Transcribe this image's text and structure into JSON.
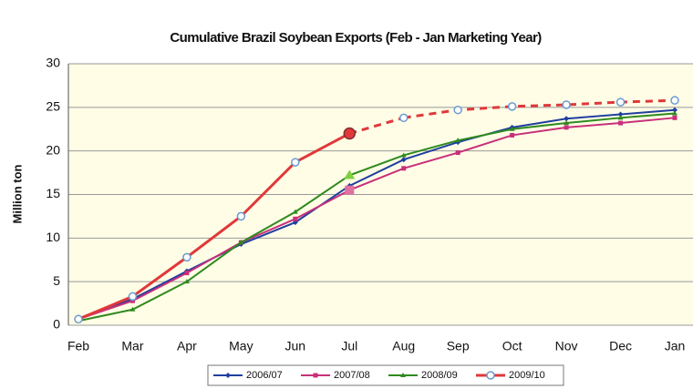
{
  "chart_data": {
    "type": "line",
    "title": "Cumulative Brazil Soybean Exports (Feb - Jan Marketing Year)",
    "y_label": "Million ton",
    "categories": [
      "Feb",
      "Mar",
      "Apr",
      "May",
      "Jun",
      "Jul",
      "Aug",
      "Sep",
      "Oct",
      "Nov",
      "Dec",
      "Jan"
    ],
    "series": [
      {
        "name": "2006/07",
        "color": "#1f3fa0",
        "marker": "diamond",
        "values": [
          0.7,
          3.0,
          6.2,
          9.3,
          11.8,
          16.0,
          19.0,
          21.0,
          22.7,
          23.7,
          24.2,
          24.7
        ]
      },
      {
        "name": "2007/08",
        "color": "#c8307a",
        "marker": "square",
        "values": [
          0.7,
          2.8,
          6.0,
          9.5,
          12.2,
          15.5,
          18.0,
          19.8,
          21.8,
          22.7,
          23.2,
          23.8
        ]
      },
      {
        "name": "2008/09",
        "color": "#2f8a1e",
        "marker": "triangle",
        "values": [
          0.5,
          1.8,
          5.0,
          9.5,
          13.0,
          17.2,
          19.5,
          21.2,
          22.5,
          23.2,
          23.8,
          24.3
        ]
      },
      {
        "name": "2009/10",
        "color": "#e0383a",
        "marker": "circle",
        "dashed_after": "Jul",
        "values": [
          0.7,
          3.3,
          7.8,
          12.5,
          18.7,
          22.0,
          23.8,
          24.7,
          25.1,
          25.3,
          25.6,
          25.8
        ]
      }
    ],
    "ylim": [
      0,
      30
    ],
    "yticks": [
      0,
      5,
      10,
      15,
      20,
      25,
      30
    ],
    "grid": true,
    "legend": "bottom"
  }
}
